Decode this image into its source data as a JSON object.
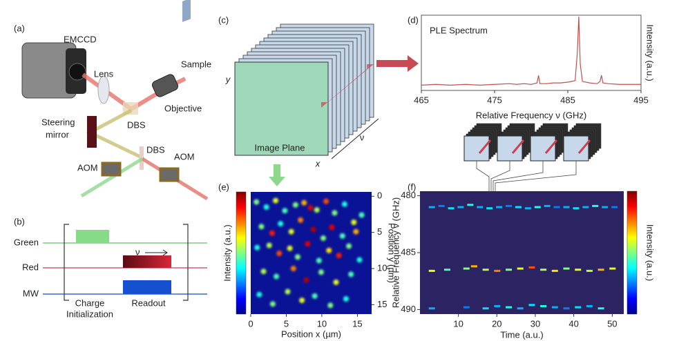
{
  "panel_labels": [
    "(a)",
    "(b)",
    "(c)",
    "(d)",
    "(e)",
    "(f)"
  ],
  "setup": {
    "camera": "EMCCD",
    "lens": "Lens",
    "sample": "Sample",
    "objective": "Objective",
    "dbs_1": "DBS",
    "steering_mirror": [
      "Steering",
      "mirror"
    ],
    "dbs_2": "DBS",
    "aom_1": "AOM",
    "aom_2": "AOM"
  },
  "sequence": {
    "channels": [
      "Green",
      "Red",
      "MW"
    ],
    "sweep": "ν",
    "charge_initialization": [
      "Charge",
      "Initialization"
    ],
    "readout": "Readout"
  },
  "datacube": {
    "y_axis": "y",
    "x_axis": "x",
    "frequency_axis": "ν",
    "image_plane": "Image Plane"
  },
  "chart_data": [
    {
      "type": "line",
      "title": "PLE Spectrum",
      "x_label": "Relative Frequency ν (GHz)",
      "y_label": "Intensity (a.u.)",
      "xlim": [
        465,
        495
      ],
      "xticks": [
        465,
        475,
        485,
        495
      ],
      "ylim": [
        0,
        1
      ],
      "color": "#c0504d",
      "x": [
        465,
        467,
        469,
        471,
        473,
        475,
        477,
        478,
        479,
        480,
        480.8,
        481,
        481.2,
        482,
        483,
        484,
        485,
        486,
        486.3,
        486.5,
        486.7,
        487,
        488,
        489,
        489.4,
        489.6,
        489.8,
        490.5,
        492,
        494,
        495
      ],
      "values": [
        0.07,
        0.08,
        0.07,
        0.08,
        0.07,
        0.08,
        0.09,
        0.08,
        0.09,
        0.08,
        0.1,
        0.2,
        0.09,
        0.09,
        0.1,
        0.1,
        0.11,
        0.13,
        0.5,
        0.98,
        0.35,
        0.12,
        0.1,
        0.09,
        0.12,
        0.2,
        0.1,
        0.09,
        0.08,
        0.08,
        0.08
      ]
    },
    {
      "type": "scatter",
      "x_label": "Position x (µm)",
      "y_label": "Position y (µm)",
      "colorbar_label": "Intensity (a.u.)",
      "xlim": [
        0,
        17
      ],
      "xticks": [
        0,
        5,
        10,
        15
      ],
      "ylim": [
        16.3,
        -0.6
      ],
      "yticks": [
        0,
        5,
        10,
        15
      ],
      "x": [
        0.8,
        2.2,
        3.5,
        4.8,
        6.3,
        7.5,
        8.4,
        9.3,
        10.6,
        11.8,
        13.2,
        14.5,
        15.6,
        1.5,
        3,
        4.2,
        5.7,
        7,
        8.8,
        10.2,
        11.4,
        12.9,
        14.8,
        0.9,
        2.6,
        4,
        5.5,
        6.6,
        8,
        9.6,
        11,
        12.4,
        13.8,
        15.3,
        1.8,
        3.6,
        6,
        7.8,
        9.9,
        12,
        14.1,
        1.2,
        3.1,
        5.2,
        7.2,
        9,
        11.2,
        13.4
      ],
      "y": [
        0.8,
        1.5,
        0.6,
        2,
        1.2,
        0.9,
        1.6,
        1.9,
        0.7,
        2.3,
        1.1,
        3.6,
        2.6,
        4.2,
        5.1,
        3.8,
        4.9,
        3.3,
        4.6,
        5.8,
        4.3,
        5.5,
        4.9,
        7.1,
        6.8,
        7.9,
        7.2,
        8.4,
        6.6,
        8.9,
        7.5,
        8.2,
        6.9,
        8.8,
        10.4,
        11.1,
        10,
        11.6,
        10.5,
        11.9,
        10.8,
        13.6,
        14.9,
        13.2,
        14.4,
        13.8,
        15.1,
        14.2
      ],
      "values": [
        0.5,
        0.4,
        0.6,
        0.45,
        0.5,
        0.7,
        0.9,
        0.55,
        0.8,
        0.5,
        0.4,
        0.6,
        0.45,
        0.5,
        0.85,
        0.4,
        0.6,
        0.75,
        0.95,
        0.5,
        0.9,
        0.45,
        0.7,
        0.4,
        0.55,
        0.8,
        0.6,
        0.5,
        0.9,
        0.45,
        0.65,
        0.85,
        0.5,
        0.4,
        0.55,
        0.45,
        0.75,
        0.95,
        0.5,
        0.6,
        0.45,
        0.4,
        0.5,
        0.55,
        0.6,
        0.45,
        0.5,
        0.4
      ]
    },
    {
      "type": "heatmap",
      "x_label": "Time (a.u.)",
      "y_label": "Relative Frequency ν (GHz)",
      "colorbar_label": "Intensity (a.u.)",
      "xlim": [
        0,
        53
      ],
      "xticks": [
        10,
        20,
        30,
        40,
        50
      ],
      "ylim": [
        490.4,
        479.6
      ],
      "yticks": [
        480,
        485,
        490
      ],
      "x": [
        3,
        5.5,
        8,
        10.5,
        13,
        15.5,
        18,
        20.5,
        23,
        25.5,
        28,
        30.5,
        33,
        35.5,
        38,
        40.5,
        43,
        45.5,
        48,
        50.5,
        3,
        7,
        12,
        14,
        17,
        20,
        23,
        26,
        29,
        32,
        35,
        38,
        41,
        44,
        47,
        50,
        3,
        12,
        17,
        20,
        23,
        26,
        29,
        32,
        35,
        38,
        41,
        44,
        47
      ],
      "y": [
        481,
        480.9,
        481.1,
        481,
        480.8,
        481,
        481.1,
        481,
        480.9,
        481,
        481.1,
        481,
        480.9,
        481,
        481,
        481.1,
        481,
        480.9,
        481,
        481,
        486.6,
        486.5,
        486.4,
        486.2,
        486.5,
        486.6,
        486.5,
        486.4,
        486.3,
        486.5,
        486.6,
        486.4,
        486.5,
        486.6,
        486.5,
        486.4,
        489.9,
        489.8,
        489.9,
        489.7,
        489.8,
        489.9,
        489.6,
        489.7,
        489.8,
        489.9,
        489.8,
        489.7,
        489.9
      ],
      "values": [
        0.3,
        0.25,
        0.35,
        0.3,
        0.4,
        0.3,
        0.35,
        0.3,
        0.25,
        0.35,
        0.3,
        0.4,
        0.3,
        0.25,
        0.3,
        0.35,
        0.3,
        0.4,
        0.3,
        0.25,
        0.6,
        0.45,
        0.5,
        0.7,
        0.55,
        0.75,
        0.5,
        0.6,
        0.8,
        0.55,
        0.65,
        0.5,
        0.6,
        0.55,
        0.7,
        0.6,
        0.3,
        0.25,
        0.35,
        0.3,
        0.4,
        0.3,
        0.35,
        0.4,
        0.3,
        0.25,
        0.35,
        0.3,
        0.4
      ]
    }
  ]
}
